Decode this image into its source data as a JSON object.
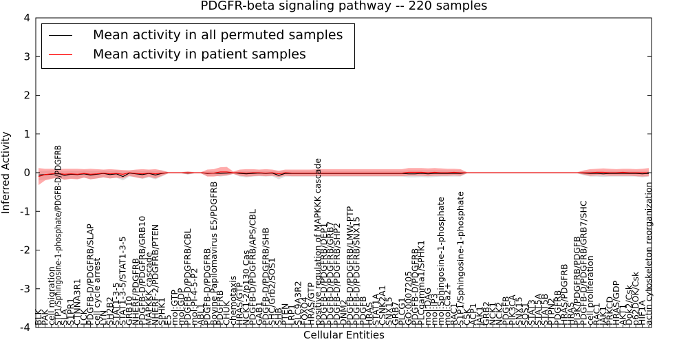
{
  "chart_data": {
    "type": "line",
    "title": "PDGFR-beta signaling pathway -- 220 samples",
    "xlabel": "Cellular Entities",
    "ylabel": "Inferred Activity",
    "ylim": [
      -4,
      4
    ],
    "yticks": [
      -4,
      -3,
      -2,
      -1,
      0,
      1,
      2,
      3,
      4
    ],
    "legend_position": "top-left",
    "categories": [
      "BLK",
      "PAK",
      "cell migration",
      "STP1/Sphingosine-1-phosphate/PDGFB-D/PDGFRB",
      "SLA",
      "S1PR1",
      "CTNNA3R1",
      "LCK",
      "PDGFB-D/PDGFRB/SLAP",
      "cell cycle arrest",
      "LYN",
      "SH2B2",
      "STAT1-3-5",
      "STAT1-3-5/STAT1-3-5",
      "GRB10",
      "NHERF/PDGFRB",
      "PDGFB-D/PDGFRB/GRB10",
      "MAPKKK cascade",
      "NHERF-2/PDGFRB/PTEN",
      "SPHK1",
      "E5",
      "mol:GTP",
      "mol:GDP",
      "PDGFB-D/PDGFRB/CBL",
      "mol:PI-4-5-P2",
      "ABL1",
      "PDGFB-D/PDGFRB",
      "Bovine Papilomavirus E5/PDGFRB",
      "PDGFRB",
      "CHUK",
      "chemotaxis",
      "HRAS/GTP",
      "NCK1-2/p130 Cas",
      "PDGFB-D/PDGFRB/APS/CBL",
      "GAB1",
      "PDGFB-D/PDGFRB/SHB",
      "SHC/Grb2/SOS1",
      "SHB",
      "PTEN",
      "LRP1",
      "SLC9A3R2",
      "FOXO4",
      "HRAS/GTP",
      "positive regulation of MAPKKK cascade",
      "PDGFB-D/PDGFRB/DEP1",
      "PDGFB-D/PDGFRB/GRB7",
      "PDGFB-D/PDGFRB/SHP2",
      "DNM2",
      "PDGFB-D/PDGFRB/LMW-PTP",
      "PDGFB-D/PDGFRB/SNX15",
      "PDGFB",
      "HRAS",
      "STAT1A",
      "CSNK2A1",
      "SNX15",
      "GRB7",
      "PLCG1",
      "GO:0007205",
      "PDGFB-D/PDGFRB",
      "PLCgamma1/SPHK1",
      "mol:DAG",
      "mol:IP3",
      "mol:Sphingosine-1-phosphate",
      "mol:Ca2+",
      "RAC1",
      "S1P1/Sphingosine-1-phosphate",
      "CSK",
      "ACP1",
      "JAK1",
      "GRB2",
      "NCK1",
      "NCK2",
      "PDGFB",
      "PIK3CA",
      "SNX15",
      "SOS1",
      "STAT3",
      "STAT5A",
      "STAT5B",
      "PTPN2",
      "PDGFRB",
      "HRAS/PDGFRB",
      "HRAS",
      "PI3K/PDGFRB/PDGFB",
      "PDGFB-D/PDGFRB/GRB7/SHC",
      "cell proliferation",
      "RAC1",
      "JAK1",
      "PRKCD",
      "HRAS/GDP",
      "AKT1",
      "Dok2/Csk",
      "p62DOK/Csk",
      "HIF1A",
      "actin cytoskeleton reorganization"
    ],
    "series": [
      {
        "name": "Mean activity in all permuted samples",
        "color": "#000000",
        "values": [
          -0.06,
          -0.05,
          -0.04,
          -0.02,
          -0.07,
          -0.04,
          -0.05,
          -0.03,
          -0.06,
          -0.04,
          -0.02,
          -0.05,
          -0.03,
          -0.1,
          -0.01,
          -0.03,
          -0.05,
          -0.02,
          -0.06,
          -0.02,
          0.0,
          0.0,
          0.0,
          -0.01,
          0.0,
          0.0,
          -0.02,
          -0.01,
          -0.02,
          -0.01,
          0.0,
          -0.02,
          -0.03,
          -0.02,
          -0.01,
          -0.02,
          -0.01,
          -0.07,
          -0.02,
          -0.02,
          -0.02,
          -0.02,
          -0.02,
          -0.02,
          -0.02,
          -0.02,
          -0.02,
          -0.02,
          -0.02,
          -0.02,
          -0.02,
          -0.02,
          -0.02,
          -0.02,
          -0.02,
          -0.02,
          -0.02,
          -0.03,
          -0.03,
          -0.02,
          -0.03,
          -0.02,
          -0.02,
          -0.02,
          -0.02,
          -0.02,
          0.0,
          0.0,
          0.0,
          0.0,
          0.0,
          0.0,
          0.0,
          0.0,
          0.0,
          0.0,
          0.0,
          0.0,
          0.0,
          0.0,
          0.0,
          0.0,
          0.0,
          0.0,
          -0.01,
          -0.02,
          -0.02,
          -0.03,
          -0.02,
          -0.02,
          -0.02,
          -0.02,
          -0.02,
          -0.03,
          -0.02
        ]
      },
      {
        "name": "Mean activity in patient samples",
        "color": "#ff0000",
        "values": [
          -0.1,
          -0.05,
          -0.03,
          -0.02,
          -0.04,
          -0.03,
          -0.04,
          -0.02,
          -0.04,
          -0.03,
          -0.01,
          -0.03,
          -0.02,
          -0.04,
          0.0,
          -0.02,
          -0.03,
          -0.01,
          -0.03,
          -0.01,
          0.0,
          0.0,
          0.0,
          0.0,
          0.0,
          0.0,
          -0.01,
          -0.01,
          0.02,
          0.02,
          0.0,
          0.0,
          -0.01,
          0.0,
          0.0,
          -0.01,
          0.0,
          -0.03,
          0.0,
          -0.01,
          -0.01,
          -0.01,
          -0.01,
          -0.01,
          -0.01,
          -0.01,
          -0.01,
          -0.01,
          -0.01,
          -0.01,
          -0.01,
          -0.01,
          -0.01,
          -0.01,
          -0.01,
          -0.01,
          -0.01,
          0.01,
          0.01,
          0.01,
          0.0,
          0.01,
          0.0,
          0.0,
          0.01,
          0.0,
          0.0,
          0.0,
          0.0,
          0.0,
          0.0,
          0.0,
          0.0,
          0.0,
          0.0,
          0.0,
          0.0,
          0.0,
          0.0,
          0.0,
          0.0,
          0.0,
          0.0,
          0.0,
          0.0,
          0.0,
          0.01,
          0.01,
          0.0,
          0.0,
          0.01,
          0.0,
          0.0,
          0.0,
          0.0
        ]
      }
    ],
    "bands": [
      {
        "name": "permuted spread",
        "color": "#cccccc",
        "upper": [
          0.04,
          0.05,
          0.06,
          0.06,
          0.04,
          0.05,
          0.05,
          0.06,
          0.05,
          0.05,
          0.06,
          0.05,
          0.06,
          0.04,
          0.06,
          0.06,
          0.05,
          0.06,
          0.05,
          0.06,
          0.02,
          0.02,
          0.02,
          0.03,
          0.02,
          0.02,
          0.04,
          0.04,
          0.05,
          0.05,
          0.02,
          0.05,
          0.05,
          0.05,
          0.05,
          0.05,
          0.05,
          0.04,
          0.05,
          0.05,
          0.05,
          0.05,
          0.05,
          0.05,
          0.05,
          0.05,
          0.05,
          0.05,
          0.05,
          0.05,
          0.05,
          0.05,
          0.05,
          0.05,
          0.05,
          0.05,
          0.05,
          0.06,
          0.06,
          0.06,
          0.06,
          0.06,
          0.06,
          0.06,
          0.06,
          0.06,
          0.02,
          0.02,
          0.02,
          0.02,
          0.02,
          0.02,
          0.02,
          0.02,
          0.02,
          0.02,
          0.02,
          0.02,
          0.02,
          0.02,
          0.02,
          0.02,
          0.02,
          0.02,
          0.04,
          0.05,
          0.05,
          0.05,
          0.05,
          0.05,
          0.05,
          0.05,
          0.05,
          0.05,
          0.05
        ],
        "lower": [
          -0.2,
          -0.18,
          -0.15,
          -0.12,
          -0.18,
          -0.15,
          -0.16,
          -0.12,
          -0.17,
          -0.15,
          -0.12,
          -0.15,
          -0.13,
          -0.2,
          -0.1,
          -0.12,
          -0.16,
          -0.12,
          -0.17,
          -0.1,
          -0.02,
          -0.02,
          -0.02,
          -0.05,
          -0.02,
          -0.02,
          -0.09,
          -0.08,
          -0.1,
          -0.08,
          -0.03,
          -0.1,
          -0.12,
          -0.1,
          -0.09,
          -0.1,
          -0.09,
          -0.17,
          -0.1,
          -0.1,
          -0.1,
          -0.1,
          -0.1,
          -0.1,
          -0.1,
          -0.1,
          -0.1,
          -0.1,
          -0.1,
          -0.1,
          -0.1,
          -0.1,
          -0.1,
          -0.1,
          -0.1,
          -0.1,
          -0.1,
          -0.12,
          -0.12,
          -0.11,
          -0.12,
          -0.11,
          -0.1,
          -0.1,
          -0.1,
          -0.1,
          -0.02,
          -0.02,
          -0.02,
          -0.02,
          -0.02,
          -0.02,
          -0.02,
          -0.02,
          -0.02,
          -0.02,
          -0.02,
          -0.02,
          -0.02,
          -0.02,
          -0.02,
          -0.02,
          -0.02,
          -0.02,
          -0.07,
          -0.1,
          -0.1,
          -0.11,
          -0.1,
          -0.1,
          -0.1,
          -0.1,
          -0.1,
          -0.12,
          -0.1
        ]
      },
      {
        "name": "patient spread",
        "color": "#ff6666",
        "upper": [
          0.12,
          0.1,
          0.1,
          0.09,
          0.1,
          0.1,
          0.1,
          0.09,
          0.1,
          0.09,
          0.08,
          0.09,
          0.08,
          0.07,
          0.06,
          0.08,
          0.09,
          0.08,
          0.09,
          0.06,
          0.01,
          0.01,
          0.01,
          0.03,
          0.01,
          0.01,
          0.08,
          0.09,
          0.14,
          0.15,
          0.03,
          0.08,
          0.09,
          0.09,
          0.08,
          0.09,
          0.08,
          0.05,
          0.08,
          0.08,
          0.08,
          0.08,
          0.08,
          0.09,
          0.09,
          0.09,
          0.09,
          0.09,
          0.09,
          0.09,
          0.09,
          0.09,
          0.09,
          0.09,
          0.09,
          0.09,
          0.09,
          0.12,
          0.12,
          0.12,
          0.11,
          0.12,
          0.11,
          0.1,
          0.1,
          0.09,
          0.01,
          0.01,
          0.01,
          0.01,
          0.01,
          0.01,
          0.01,
          0.01,
          0.01,
          0.01,
          0.01,
          0.01,
          0.01,
          0.01,
          0.01,
          0.01,
          0.01,
          0.01,
          0.06,
          0.09,
          0.1,
          0.11,
          0.1,
          0.09,
          0.1,
          0.1,
          0.09,
          0.1,
          0.12
        ],
        "lower": [
          -0.32,
          -0.2,
          -0.16,
          -0.13,
          -0.18,
          -0.16,
          -0.17,
          -0.13,
          -0.17,
          -0.15,
          -0.12,
          -0.15,
          -0.13,
          -0.15,
          -0.08,
          -0.12,
          -0.15,
          -0.1,
          -0.15,
          -0.08,
          -0.01,
          -0.01,
          -0.01,
          -0.04,
          -0.01,
          -0.01,
          -0.1,
          -0.1,
          -0.08,
          -0.07,
          -0.03,
          -0.08,
          -0.1,
          -0.09,
          -0.08,
          -0.09,
          -0.08,
          -0.11,
          -0.08,
          -0.09,
          -0.09,
          -0.09,
          -0.09,
          -0.09,
          -0.09,
          -0.09,
          -0.09,
          -0.09,
          -0.09,
          -0.09,
          -0.09,
          -0.09,
          -0.09,
          -0.09,
          -0.09,
          -0.09,
          -0.09,
          -0.08,
          -0.08,
          -0.08,
          -0.09,
          -0.08,
          -0.08,
          -0.08,
          -0.07,
          -0.08,
          -0.01,
          -0.01,
          -0.01,
          -0.01,
          -0.01,
          -0.01,
          -0.01,
          -0.01,
          -0.01,
          -0.01,
          -0.01,
          -0.01,
          -0.01,
          -0.01,
          -0.01,
          -0.01,
          -0.01,
          -0.01,
          -0.05,
          -0.08,
          -0.07,
          -0.07,
          -0.08,
          -0.08,
          -0.08,
          -0.08,
          -0.09,
          -0.1,
          -0.09
        ]
      }
    ]
  }
}
